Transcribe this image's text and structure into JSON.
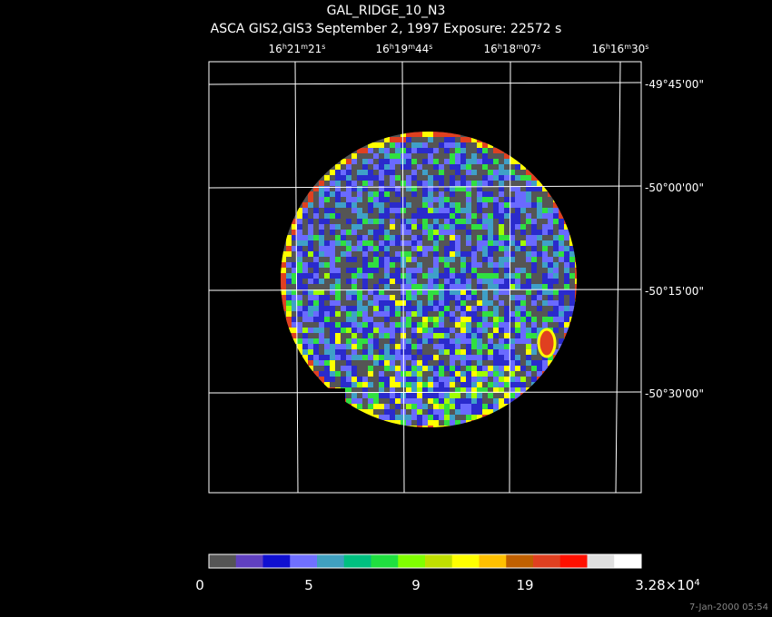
{
  "header": {
    "title": "GAL_RIDGE_10_N3",
    "subtitle": "ASCA GIS2,GIS3 September 2, 1997 Exposure: 22572 s"
  },
  "ra_labels": [
    [
      "16",
      "h",
      "21",
      "m",
      "21",
      "s"
    ],
    [
      "16",
      "h",
      "19",
      "m",
      "44",
      "s"
    ],
    [
      "16",
      "h",
      "18",
      "m",
      "07",
      "s"
    ],
    [
      "16",
      "h",
      "16",
      "m",
      "30",
      "s"
    ]
  ],
  "dec_labels": [
    "-49°45'00\"",
    "-50°00'00\"",
    "-50°15'00\"",
    "-50°30'00\""
  ],
  "colorbar_labels": [
    "0",
    "5",
    "9",
    "19",
    [
      "3.28×10",
      "4"
    ]
  ],
  "footer": "7-Jan-2000 05:54"
}
